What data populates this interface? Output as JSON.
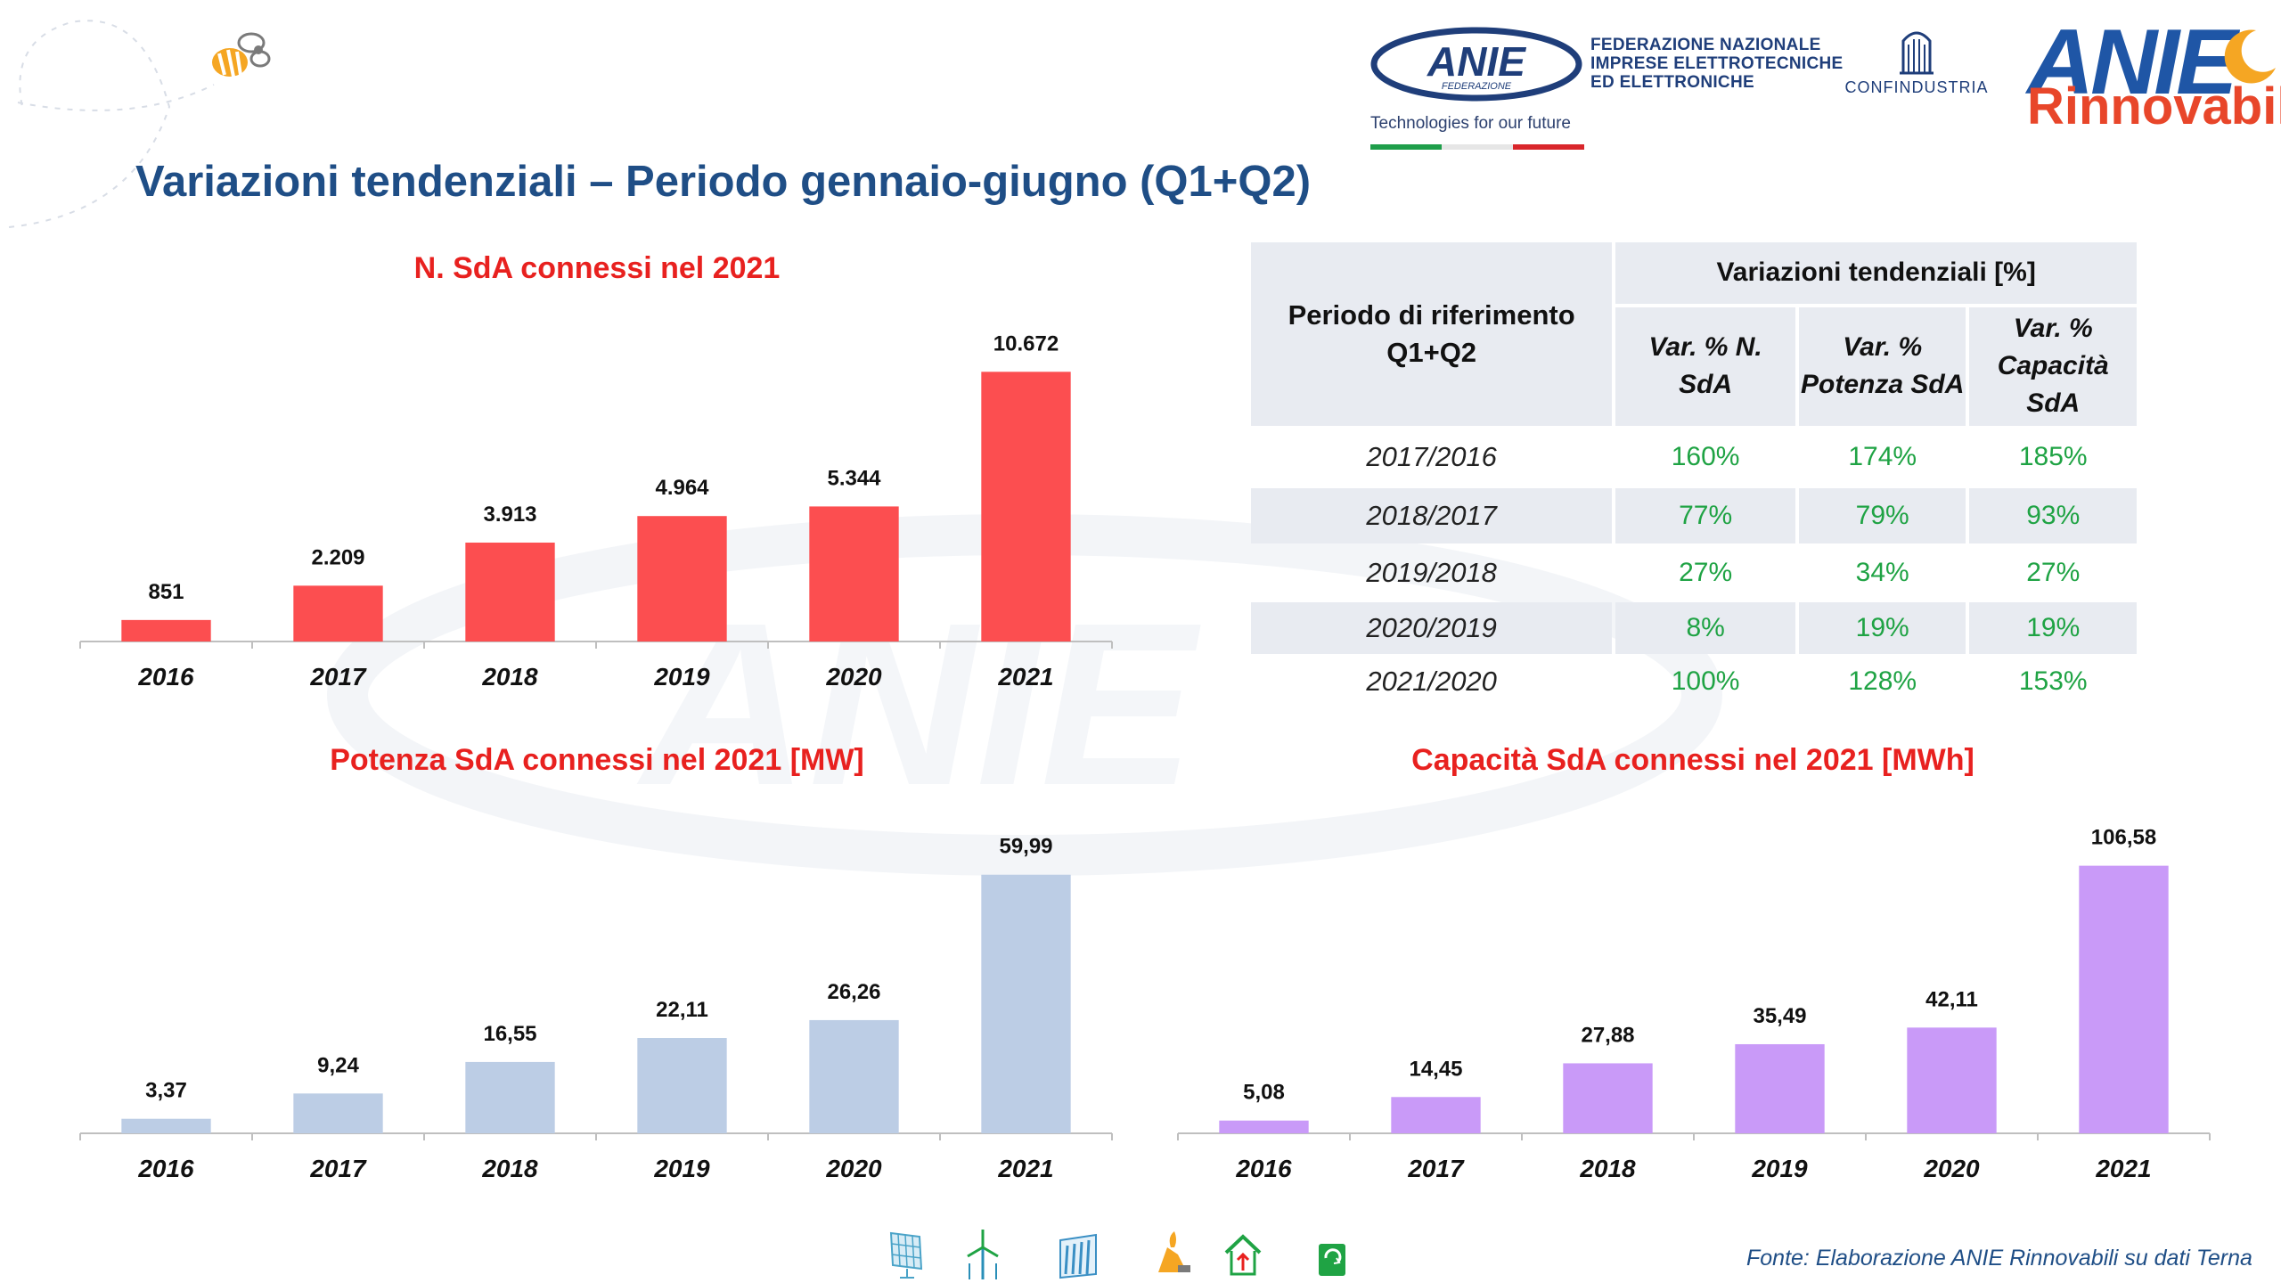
{
  "header": {
    "anie_logo_text": "ANIE",
    "anie_logo_sub": "FEDERAZIONE",
    "federation_name": [
      "FEDERAZIONE NAZIONALE",
      "IMPRESE ELETTROTECNICHE",
      "ED ELETTRONICHE"
    ],
    "tagline": "Technologies for our future",
    "confindustria": "CONFINDUSTRIA",
    "rinnovabili_top": "ANIE",
    "rinnovabili_bottom": "Rinnovabili",
    "flag_colors": [
      "#1e9e4a",
      "#ffffff",
      "#d9262b"
    ]
  },
  "title": "Variazioni tendenziali – Periodo gennaio-giugno (Q1+Q2)",
  "chart_data": [
    {
      "type": "bar",
      "title": "N. SdA connessi nel 2021",
      "categories": [
        "2016",
        "2017",
        "2018",
        "2019",
        "2020",
        "2021"
      ],
      "values": [
        851,
        2209,
        3913,
        4964,
        5344,
        10672
      ],
      "labels": [
        "851",
        "2.209",
        "3.913",
        "4.964",
        "5.344",
        "10.672"
      ],
      "color": "#fc4e50",
      "ylim": [
        0,
        11000
      ]
    },
    {
      "type": "bar",
      "title": "Potenza SdA connessi nel 2021 [MW]",
      "categories": [
        "2016",
        "2017",
        "2018",
        "2019",
        "2020",
        "2021"
      ],
      "values": [
        3.37,
        9.24,
        16.55,
        22.11,
        26.26,
        59.99
      ],
      "labels": [
        "3,37",
        "9,24",
        "16,55",
        "22,11",
        "26,26",
        "59,99"
      ],
      "color": "#bccde5",
      "ylim": [
        0,
        62
      ]
    },
    {
      "type": "bar",
      "title": "Capacità SdA connessi nel 2021 [MWh]",
      "categories": [
        "2016",
        "2017",
        "2018",
        "2019",
        "2020",
        "2021"
      ],
      "values": [
        5.08,
        14.45,
        27.88,
        35.49,
        42.11,
        106.58
      ],
      "labels": [
        "5,08",
        "14,45",
        "27,88",
        "35,49",
        "42,11",
        "106,58"
      ],
      "color": "#c99af8",
      "ylim": [
        0,
        110
      ]
    }
  ],
  "table": {
    "header_period": "Periodo di riferimento Q1+Q2",
    "header_group": "Variazioni tendenziali [%]",
    "columns": [
      "Var. % N. SdA",
      "Var. % Potenza SdA",
      "Var. % Capacità SdA"
    ],
    "rows": [
      {
        "period": "2017/2016",
        "values": [
          "160%",
          "174%",
          "185%"
        ]
      },
      {
        "period": "2018/2017",
        "values": [
          "77%",
          "79%",
          "93%"
        ]
      },
      {
        "period": "2019/2018",
        "values": [
          "27%",
          "34%",
          "27%"
        ]
      },
      {
        "period": "2020/2019",
        "values": [
          "8%",
          "19%",
          "19%"
        ]
      },
      {
        "period": "2021/2020",
        "values": [
          "100%",
          "128%",
          "153%"
        ]
      }
    ]
  },
  "footer": {
    "source": "Fonte: Elaborazione ANIE Rinnovabili su dati Terna",
    "icons": [
      "solar-panel-icon",
      "wind-turbine-icon",
      "hydro-icon",
      "geothermal-icon",
      "home-energy-icon",
      "recycle-icon"
    ]
  }
}
